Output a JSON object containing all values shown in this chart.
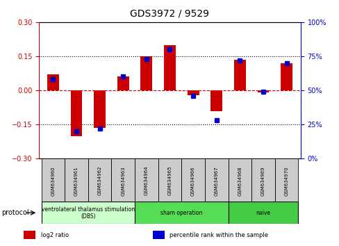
{
  "title": "GDS3972 / 9529",
  "samples": [
    "GSM634960",
    "GSM634961",
    "GSM634962",
    "GSM634963",
    "GSM634964",
    "GSM634965",
    "GSM634966",
    "GSM634967",
    "GSM634968",
    "GSM634969",
    "GSM634970"
  ],
  "log2_ratio": [
    0.07,
    -0.2,
    -0.165,
    0.06,
    0.15,
    0.2,
    -0.02,
    -0.09,
    0.135,
    -0.01,
    0.12
  ],
  "percentile_rank": [
    58,
    20,
    22,
    60,
    73,
    80,
    46,
    28,
    72,
    49,
    70
  ],
  "ylim_left": [
    -0.3,
    0.3
  ],
  "ylim_right": [
    0,
    100
  ],
  "yticks_left": [
    -0.3,
    -0.15,
    0,
    0.15,
    0.3
  ],
  "yticks_right": [
    0,
    25,
    50,
    75,
    100
  ],
  "bar_color_red": "#cc0000",
  "bar_color_blue": "#0000cc",
  "protocol_groups": [
    {
      "label": "ventrolateral thalamus stimulation\n(DBS)",
      "start": 0,
      "end": 3,
      "color": "#ccffcc"
    },
    {
      "label": "sham operation",
      "start": 4,
      "end": 7,
      "color": "#55dd55"
    },
    {
      "label": "naive",
      "start": 8,
      "end": 10,
      "color": "#44cc44"
    }
  ],
  "legend_items": [
    {
      "color": "#cc0000",
      "label": "log2 ratio"
    },
    {
      "color": "#0000cc",
      "label": "percentile rank within the sample"
    }
  ],
  "bg_color": "#ffffff",
  "zero_line_color": "#cc0000",
  "sample_box_color": "#cccccc"
}
